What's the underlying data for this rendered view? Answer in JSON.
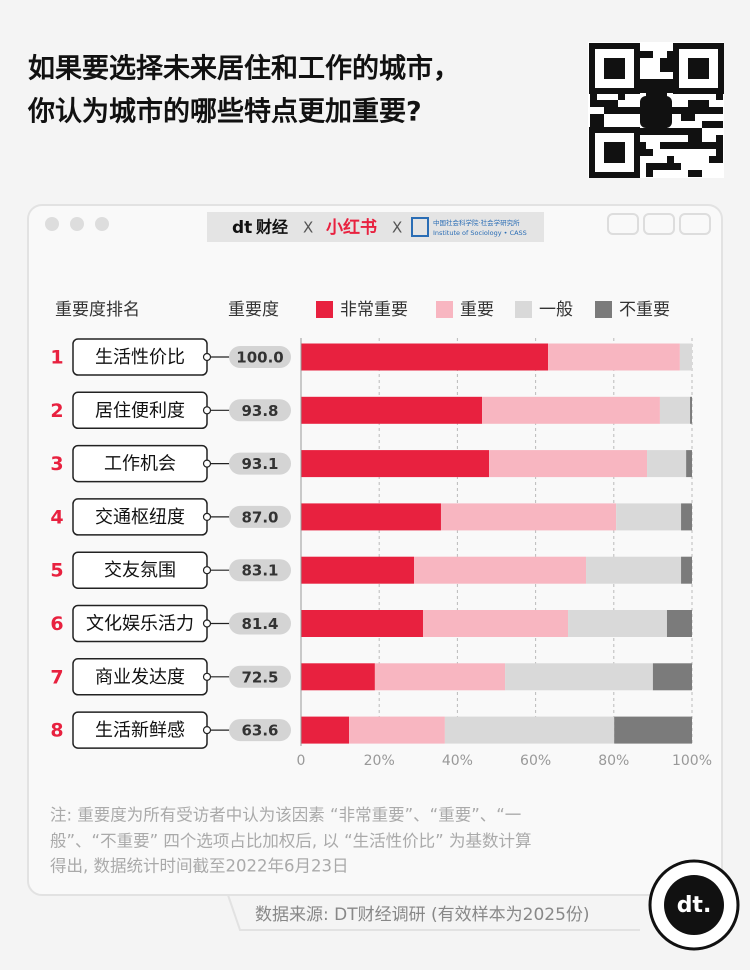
{
  "header": {
    "title_lines": [
      "如果要选择未来居住和工作的城市，",
      "你认为城市的哪些特点更加重要?"
    ]
  },
  "banner": {
    "brand": "财经",
    "separator": "X",
    "partner": "小红书",
    "institute_cn": "中国社会科学院·社会学研究所",
    "institute_en": "Institute of Sociology • CASS"
  },
  "chart_data": {
    "type": "stacked-bar-horizontal",
    "rank_header": "重要度排名",
    "importance_header": "重要度",
    "ranks": [
      "1",
      "2",
      "3",
      "4",
      "5",
      "6",
      "7",
      "8"
    ],
    "categories": [
      "生活性价比",
      "居住便利度",
      "工作机会",
      "交通枢纽度",
      "交友氛围",
      "文化娱乐活力",
      "商业发达度",
      "生活新鲜感"
    ],
    "importance": [
      "100.0",
      "93.8",
      "93.1",
      "87.0",
      "83.1",
      "81.4",
      "72.5",
      "63.6"
    ],
    "series": [
      {
        "name": "非常重要",
        "color": "#e8213f",
        "values": [
          63.2,
          46.3,
          48.1,
          35.8,
          28.9,
          31.2,
          18.9,
          12.3
        ]
      },
      {
        "name": "重要",
        "color": "#f8b6c1",
        "values": [
          33.7,
          45.5,
          40.4,
          44.8,
          44.0,
          37.1,
          33.3,
          24.5
        ]
      },
      {
        "name": "一般",
        "color": "#d9d9d9",
        "values": [
          3.1,
          7.7,
          10.0,
          16.6,
          24.3,
          25.3,
          37.8,
          43.3
        ]
      },
      {
        "name": "不重要",
        "color": "#7b7b7b",
        "values": [
          0,
          0.5,
          1.5,
          2.8,
          2.8,
          6.4,
          10.0,
          19.9
        ]
      }
    ],
    "xlim": [
      0,
      100
    ],
    "xticks": [
      0,
      {
        "value": 20,
        "label": "20%"
      },
      {
        "value": 40,
        "label": "40%"
      },
      {
        "value": 60,
        "label": "60%"
      },
      {
        "value": 80,
        "label": "80%"
      },
      {
        "value": 100,
        "label": "100%"
      }
    ],
    "grid": true
  },
  "footer": {
    "note_lines": [
      "注: 重要度为所有受访者中认为该因素 “非常重要”、“重要”、“一",
      "般”、“不重要” 四个选项占比加权后, 以 “生活性价比” 为基数计算",
      "得出, 数据统计时间截至2022年6月23日"
    ],
    "source": "数据来源: DT财经调研 (有效样本为2025份)",
    "logo": "dt."
  }
}
